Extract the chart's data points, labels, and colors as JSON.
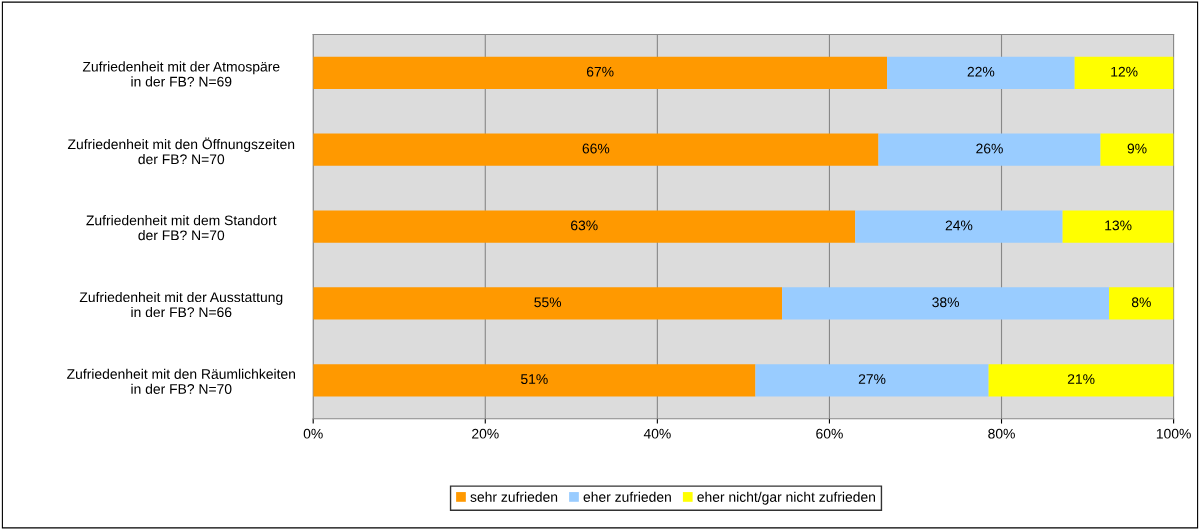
{
  "chart_data": {
    "type": "bar",
    "orientation": "horizontal",
    "stacked": true,
    "categories": [
      "Zufriedenheit mit der Atmospäre\nin der FB? N=69",
      "Zufriedenheit mit den Öffnungszeiten\nder FB? N=70",
      "Zufriedenheit mit dem Standort\nder FB? N=70",
      "Zufriedenheit mit der Ausstattung\nin der FB? N=66",
      "Zufriedenheit mit den Räumlichkeiten\nin der FB? N=70"
    ],
    "series": [
      {
        "name": "sehr zufrieden",
        "color": "#ff9900",
        "values": [
          66.7,
          65.7,
          63.0,
          54.5,
          51.4
        ],
        "value_labels": [
          "67%",
          "66%",
          "63%",
          "55%",
          "51%"
        ]
      },
      {
        "name": "eher zufrieden",
        "color": "#99ccff",
        "values": [
          21.8,
          25.8,
          24.1,
          38.0,
          27.1
        ],
        "value_labels": [
          "22%",
          "26%",
          "24%",
          "38%",
          "27%"
        ]
      },
      {
        "name": "eher nicht/gar nicht zufrieden",
        "color": "#ffff00",
        "values": [
          11.5,
          8.5,
          12.9,
          7.5,
          21.5
        ],
        "value_labels": [
          "12%",
          "9%",
          "13%",
          "8%",
          "21%"
        ]
      }
    ],
    "xlim": [
      0,
      100
    ],
    "xticks": [
      {
        "value": 0,
        "label": "0%"
      },
      {
        "value": 20,
        "label": "20%"
      },
      {
        "value": 40,
        "label": "40%"
      },
      {
        "value": 60,
        "label": "60%"
      },
      {
        "value": 80,
        "label": "80%"
      },
      {
        "value": 100,
        "label": "100%"
      }
    ],
    "grid": "x",
    "legend": "bottom"
  }
}
